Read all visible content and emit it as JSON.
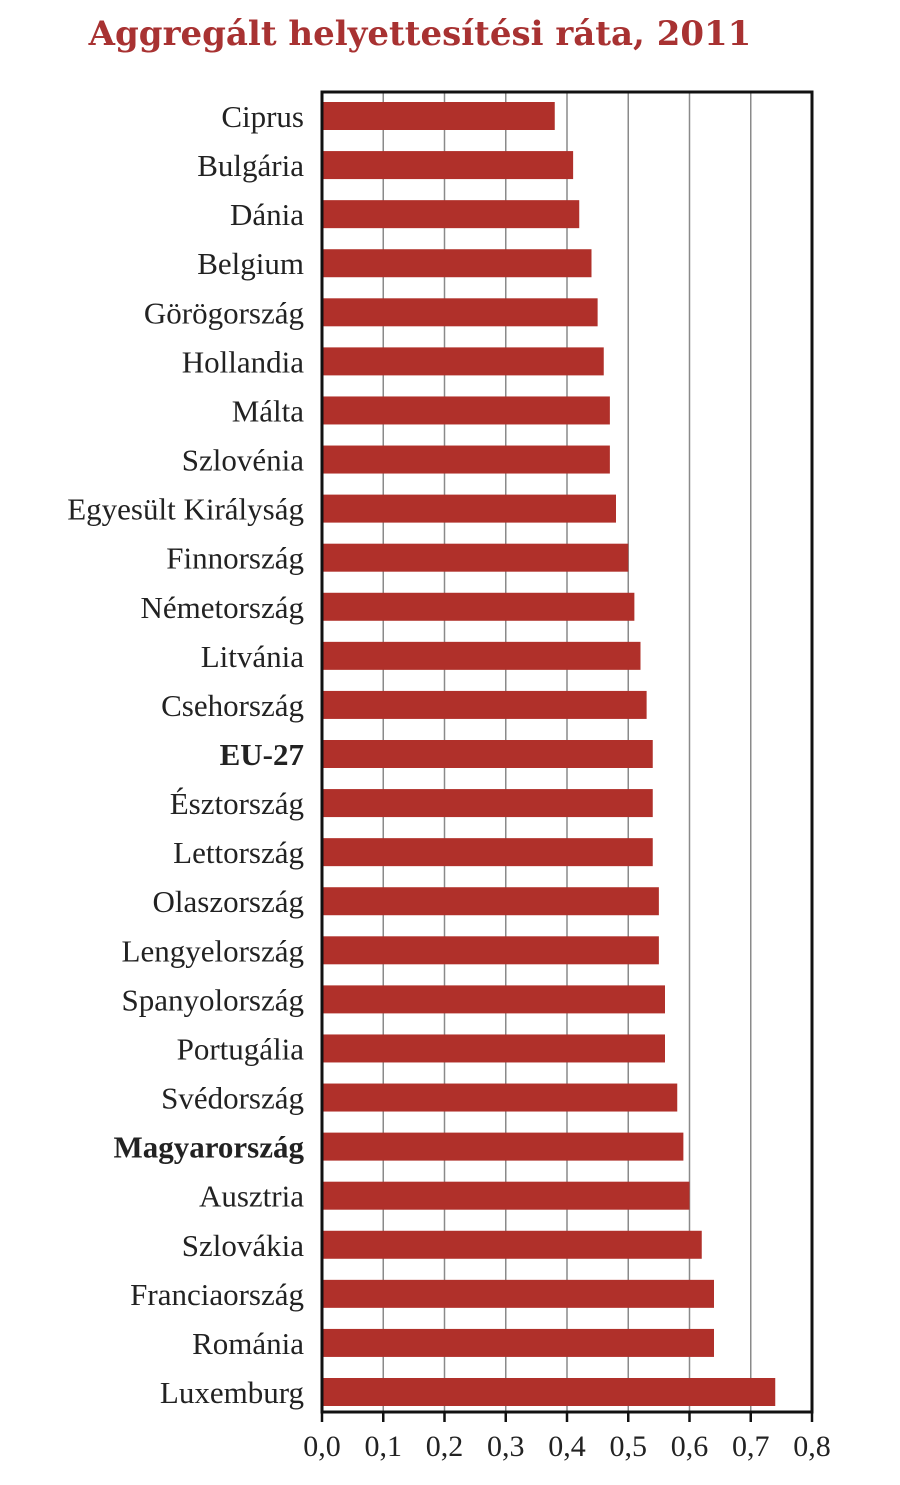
{
  "chart_data": {
    "type": "bar",
    "orientation": "horizontal",
    "title": "Aggregált helyettesítési ráta, 2011",
    "xlabel": "",
    "ylabel": "",
    "xlim": [
      0,
      0.8
    ],
    "grid": true,
    "categories": [
      "Ciprus",
      "Bulgária",
      "Dánia",
      "Belgium",
      "Görögország",
      "Hollandia",
      "Málta",
      "Szlovénia",
      "Egyesült Királyság",
      "Finnország",
      "Németország",
      "Litvánia",
      "Csehország",
      "EU-27",
      "Észtország",
      "Lettország",
      "Olaszország",
      "Lengyelország",
      "Spanyolország",
      "Portugália",
      "Svédország",
      "Magyarország",
      "Ausztria",
      "Szlovákia",
      "Franciaország",
      "Románia",
      "Luxemburg"
    ],
    "values": [
      0.38,
      0.41,
      0.42,
      0.44,
      0.45,
      0.46,
      0.47,
      0.47,
      0.48,
      0.5,
      0.51,
      0.52,
      0.53,
      0.54,
      0.54,
      0.54,
      0.55,
      0.55,
      0.56,
      0.56,
      0.58,
      0.59,
      0.6,
      0.62,
      0.64,
      0.64,
      0.74
    ],
    "tick_labels": [
      "0,0",
      "0,1",
      "0,2",
      "0,3",
      "0,4",
      "0,5",
      "0,6",
      "0,7",
      "0,8"
    ],
    "label_colors": {
      "EU-27": "#8c8c8c",
      "Magyarország": "#a83232"
    },
    "bar_color": "#b0302a",
    "title_color": "#a83232"
  }
}
